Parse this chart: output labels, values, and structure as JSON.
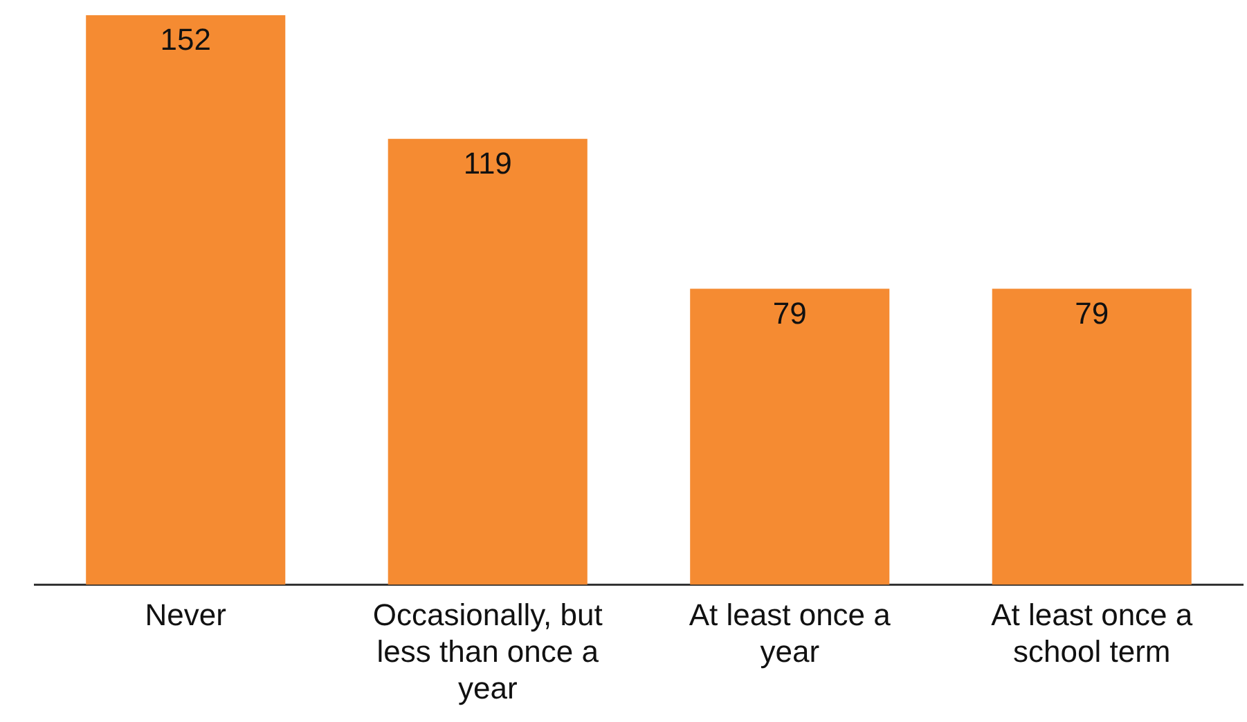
{
  "chart_data": {
    "type": "bar",
    "categories": [
      "Never",
      "Occasionally, but less than once a year",
      "At least once a year",
      "At least once a school term"
    ],
    "values": [
      152,
      119,
      79,
      79
    ],
    "color": "#f58b32",
    "data_labels": true,
    "grid": false,
    "legend": false,
    "tick_labels": "x"
  }
}
